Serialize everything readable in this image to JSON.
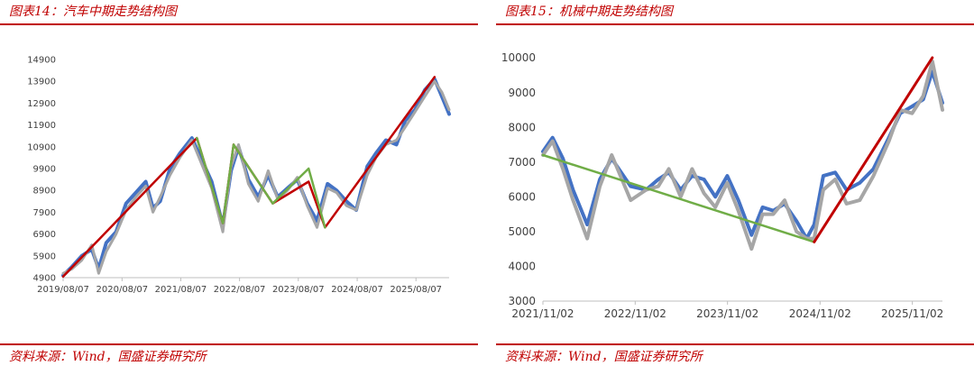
{
  "figures": [
    {
      "title": "图表14：汽车中期走势结构图",
      "source": "资料来源：Wind，国盛证券研究所",
      "chart_data": {
        "type": "line",
        "title": "",
        "xlabel": "",
        "ylabel": "",
        "grid": false,
        "legend": "none",
        "x_ticks": [
          "2019/08/07",
          "2020/08/07",
          "2021/08/07",
          "2022/08/07",
          "2023/08/07",
          "2024/08/07",
          "2025/08/07"
        ],
        "y_ticks": [
          4900,
          5900,
          6900,
          7900,
          8900,
          9900,
          10900,
          11900,
          12900,
          13900,
          14900
        ],
        "ylim": [
          4900,
          14900
        ],
        "xlim": [
          "2019/08/07",
          "2026/03/01"
        ],
        "series": [
          {
            "color": "#4472c4",
            "x": [
              "2019/08/07",
              "2019/10/01",
              "2019/12/01",
              "2020/02/01",
              "2020/03/15",
              "2020/05/01",
              "2020/07/01",
              "2020/09/01",
              "2020/11/01",
              "2021/01/01",
              "2021/02/15",
              "2021/04/01",
              "2021/06/01",
              "2021/08/01",
              "2021/10/15",
              "2021/12/15",
              "2022/02/15",
              "2022/04/25",
              "2022/06/15",
              "2022/08/01",
              "2022/10/01",
              "2022/12/01",
              "2023/02/01",
              "2023/04/01",
              "2023/06/01",
              "2023/08/01",
              "2023/10/01",
              "2023/12/01",
              "2024/02/05",
              "2024/04/01",
              "2024/06/01",
              "2024/08/01",
              "2024/10/08",
              "2024/12/01",
              "2025/02/01",
              "2025/04/08",
              "2025/06/01",
              "2025/08/01",
              "2025/10/01",
              "2025/12/01",
              "2026/01/15",
              "2026/03/01"
            ],
            "values": [
              5000,
              5400,
              5900,
              6200,
              5300,
              6500,
              7000,
              8300,
              8800,
              9300,
              8100,
              8400,
              9900,
              10600,
              11300,
              10300,
              9300,
              7300,
              9800,
              10900,
              9400,
              8600,
              9600,
              8600,
              9000,
              9400,
              8300,
              7500,
              9200,
              8900,
              8400,
              8000,
              10000,
              10600,
              11200,
              11000,
              12100,
              12600,
              13500,
              14000,
              13200,
              12400
            ]
          },
          {
            "color": "#a6a6a6",
            "x": [
              "2019/08/07",
              "2019/10/01",
              "2019/12/01",
              "2020/02/01",
              "2020/03/15",
              "2020/05/01",
              "2020/07/01",
              "2020/09/01",
              "2020/11/01",
              "2021/01/01",
              "2021/02/15",
              "2021/04/01",
              "2021/06/01",
              "2021/08/01",
              "2021/10/15",
              "2021/12/15",
              "2022/02/15",
              "2022/04/25",
              "2022/06/15",
              "2022/08/01",
              "2022/10/01",
              "2022/12/01",
              "2023/02/01",
              "2023/04/01",
              "2023/06/01",
              "2023/08/01",
              "2023/10/01",
              "2023/12/01",
              "2024/02/05",
              "2024/04/01",
              "2024/06/01",
              "2024/08/01",
              "2024/10/08",
              "2024/12/01",
              "2025/02/01",
              "2025/04/08",
              "2025/06/01",
              "2025/08/01",
              "2025/10/01",
              "2025/12/01",
              "2026/01/15",
              "2026/03/01"
            ],
            "values": [
              5100,
              5300,
              5700,
              6400,
              5100,
              6100,
              6900,
              8000,
              8600,
              9100,
              7900,
              8600,
              9600,
              10400,
              11200,
              10100,
              9000,
              7000,
              10000,
              11000,
              9200,
              8400,
              9800,
              8500,
              8900,
              9500,
              8200,
              7200,
              9000,
              8800,
              8200,
              8000,
              9600,
              10400,
              11000,
              11200,
              11800,
              12500,
              13200,
              13900,
              13400,
              12600
            ]
          },
          {
            "color": "#c00000",
            "x": [
              "2019/08/07",
              "2021/11/15",
              "2022/04/25",
              "2022/07/01",
              "2023/03/01",
              "2023/10/10",
              "2024/01/20",
              "2025/12/01"
            ],
            "values": [
              4950,
              11300,
              7400,
              11000,
              8300,
              9300,
              7200,
              14100
            ]
          },
          {
            "color": "#70ad47",
            "x": [
              "2021/11/15",
              "2022/04/25",
              "2022/07/01",
              "2023/03/01",
              "2023/10/10",
              "2024/01/20"
            ],
            "values": [
              11300,
              7400,
              11000,
              8300,
              9900,
              7200
            ]
          }
        ]
      }
    },
    {
      "title": "图表15：机械中期走势结构图",
      "source": "资料来源：Wind，国盛证券研究所",
      "chart_data": {
        "type": "line",
        "title": "",
        "xlabel": "",
        "ylabel": "",
        "grid": false,
        "legend": "none",
        "x_ticks": [
          "2021/11/02",
          "2022/11/02",
          "2023/11/02",
          "2024/11/02",
          "2025/11/02"
        ],
        "y_ticks": [
          3000,
          4000,
          5000,
          6000,
          7000,
          8000,
          9000,
          10000
        ],
        "ylim": [
          3000,
          10000
        ],
        "xlim": [
          "2021/11/02",
          "2026/03/01"
        ],
        "series": [
          {
            "color": "#4472c4",
            "x": [
              "2021/11/02",
              "2021/12/10",
              "2022/01/20",
              "2022/03/01",
              "2022/04/26",
              "2022/06/15",
              "2022/08/01",
              "2022/10/15",
              "2022/12/15",
              "2023/02/01",
              "2023/03/15",
              "2023/05/01",
              "2023/06/15",
              "2023/08/01",
              "2023/09/15",
              "2023/11/01",
              "2023/12/15",
              "2024/02/05",
              "2024/03/20",
              "2024/05/01",
              "2024/06/15",
              "2024/08/01",
              "2024/09/10",
              "2024/10/10",
              "2024/11/15",
              "2025/01/01",
              "2025/02/15",
              "2025/04/08",
              "2025/06/01",
              "2025/08/01",
              "2025/09/15",
              "2025/11/01",
              "2025/12/15",
              "2026/01/20",
              "2026/03/01"
            ],
            "values": [
              7300,
              7700,
              7100,
              6200,
              5200,
              6500,
              7100,
              6300,
              6200,
              6500,
              6700,
              6200,
              6600,
              6500,
              6000,
              6600,
              5900,
              4900,
              5700,
              5600,
              5800,
              5300,
              4800,
              5200,
              6600,
              6700,
              6200,
              6400,
              6800,
              7700,
              8400,
              8600,
              8800,
              9600,
              8700
            ]
          },
          {
            "color": "#a6a6a6",
            "x": [
              "2021/11/02",
              "2021/12/10",
              "2022/01/20",
              "2022/03/01",
              "2022/04/26",
              "2022/06/15",
              "2022/08/01",
              "2022/10/15",
              "2022/12/15",
              "2023/02/01",
              "2023/03/15",
              "2023/05/01",
              "2023/06/15",
              "2023/08/01",
              "2023/09/15",
              "2023/11/01",
              "2023/12/15",
              "2024/02/05",
              "2024/03/20",
              "2024/05/01",
              "2024/06/15",
              "2024/08/01",
              "2024/09/10",
              "2024/10/10",
              "2024/11/15",
              "2025/01/01",
              "2025/02/15",
              "2025/04/08",
              "2025/06/01",
              "2025/08/01",
              "2025/09/15",
              "2025/11/01",
              "2025/12/15",
              "2026/01/20",
              "2026/03/01"
            ],
            "values": [
              7200,
              7600,
              6800,
              5900,
              4800,
              6300,
              7200,
              5900,
              6200,
              6300,
              6800,
              6000,
              6800,
              6100,
              5700,
              6400,
              5600,
              4500,
              5500,
              5500,
              5900,
              5000,
              4800,
              4800,
              6200,
              6500,
              5800,
              5900,
              6600,
              7600,
              8500,
              8400,
              8900,
              9900,
              8500
            ]
          },
          {
            "color": "#70ad47",
            "x": [
              "2021/11/02",
              "2024/10/10"
            ],
            "values": [
              7200,
              4700
            ]
          },
          {
            "color": "#c00000",
            "x": [
              "2024/10/10",
              "2026/01/20"
            ],
            "values": [
              4700,
              10000
            ]
          }
        ]
      }
    }
  ]
}
